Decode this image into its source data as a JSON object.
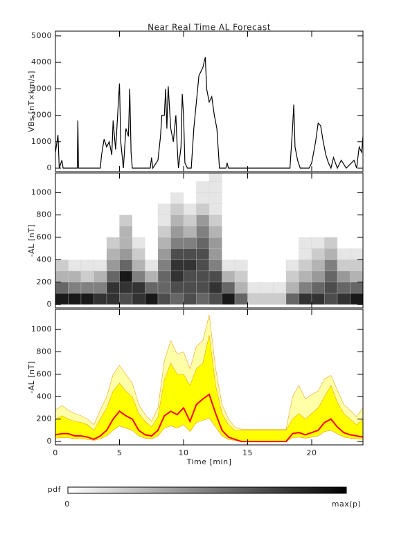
{
  "chart_data": [
    {
      "type": "line",
      "title": "Near Real Time AL Forecast",
      "ylabel": "VBs [nT×km/s]",
      "color": "#000000",
      "x": [
        0,
        0.2,
        0.3,
        0.5,
        0.6,
        1.3,
        1.7,
        1.75,
        1.8,
        3.5,
        3.6,
        3.8,
        4.0,
        4.2,
        4.4,
        4.5,
        4.7,
        4.9,
        5.0,
        5.1,
        5.3,
        5.5,
        5.7,
        5.8,
        5.9,
        6.0,
        7.4,
        7.5,
        7.6,
        8.0,
        8.2,
        8.3,
        8.5,
        8.6,
        8.7,
        8.8,
        9.0,
        9.2,
        9.4,
        9.5,
        9.6,
        9.8,
        9.9,
        10.0,
        10.1,
        10.3,
        10.6,
        10.8,
        11.0,
        11.2,
        11.5,
        11.7,
        11.8,
        12.0,
        12.2,
        12.4,
        12.6,
        12.8,
        13.3,
        13.4,
        13.5,
        18.3,
        18.5,
        18.6,
        18.7,
        18.9,
        19.1,
        19.8,
        20.0,
        20.3,
        20.5,
        20.7,
        20.9,
        21.1,
        21.3,
        21.5,
        21.7,
        22.0,
        22.3,
        22.7,
        23.3,
        23.5,
        23.7,
        23.9,
        24.0
      ],
      "values": [
        600,
        1250,
        0,
        300,
        0,
        0,
        0,
        1800,
        0,
        0,
        500,
        1100,
        800,
        1000,
        500,
        1800,
        700,
        2400,
        3200,
        1000,
        0,
        1500,
        1200,
        3000,
        600,
        0,
        0,
        400,
        0,
        300,
        1200,
        2000,
        2000,
        3000,
        1500,
        3100,
        1500,
        1000,
        2000,
        800,
        0,
        800,
        2800,
        2000,
        200,
        0,
        0,
        1500,
        2500,
        3500,
        3800,
        4200,
        3000,
        2500,
        2700,
        2000,
        1500,
        0,
        0,
        200,
        0,
        0,
        1500,
        2400,
        800,
        300,
        0,
        0,
        200,
        1000,
        1700,
        1600,
        1000,
        500,
        200,
        0,
        400,
        0,
        300,
        0,
        300,
        0,
        800,
        600,
        1200
      ],
      "xlim": [
        0,
        24
      ],
      "xticks": [
        0,
        5,
        10,
        15,
        20
      ],
      "ylim": [
        -130,
        5180
      ],
      "yticks": [
        0,
        1000,
        2000,
        3000,
        4000,
        5000
      ]
    },
    {
      "type": "heatmap",
      "ylabel": "-AL [nT]",
      "xbins": [
        0,
        1,
        2,
        3,
        4,
        5,
        6,
        7,
        8,
        9,
        10,
        11,
        12,
        13,
        14,
        15,
        16,
        17,
        18,
        19,
        20,
        21,
        22,
        23,
        24
      ],
      "ybins": [
        0,
        100,
        200,
        300,
        400,
        500,
        600,
        700,
        800,
        900,
        1000,
        1100,
        1200
      ],
      "values": [
        [
          0.9,
          0.6,
          0.3,
          0.2,
          0,
          0,
          0,
          0,
          0,
          0,
          0,
          0
        ],
        [
          0.9,
          0.5,
          0.3,
          0.1,
          0,
          0,
          0,
          0,
          0,
          0,
          0,
          0
        ],
        [
          0.9,
          0.5,
          0.2,
          0.1,
          0,
          0,
          0,
          0,
          0,
          0,
          0,
          0
        ],
        [
          0.8,
          0.5,
          0.3,
          0.1,
          0,
          0,
          0,
          0,
          0,
          0,
          0,
          0
        ],
        [
          0.8,
          0.8,
          0.6,
          0.4,
          0.3,
          0.2,
          0,
          0,
          0,
          0,
          0,
          0
        ],
        [
          0.7,
          0.8,
          0.9,
          0.6,
          0.4,
          0.3,
          0.3,
          0.2,
          0,
          0,
          0,
          0
        ],
        [
          0.8,
          0.8,
          0.5,
          0.3,
          0.2,
          0.1,
          0,
          0,
          0,
          0,
          0,
          0
        ],
        [
          0.9,
          0.6,
          0.3,
          0.1,
          0,
          0,
          0,
          0,
          0,
          0,
          0,
          0
        ],
        [
          0.7,
          0.6,
          0.6,
          0.5,
          0.4,
          0.3,
          0.2,
          0.1,
          0.1,
          0,
          0,
          0
        ],
        [
          0.6,
          0.7,
          0.8,
          0.8,
          0.7,
          0.5,
          0.4,
          0.3,
          0.2,
          0.1,
          0,
          0
        ],
        [
          0.7,
          0.7,
          0.7,
          0.8,
          0.7,
          0.5,
          0.3,
          0.2,
          0.1,
          0,
          0,
          0
        ],
        [
          0.6,
          0.7,
          0.7,
          0.7,
          0.7,
          0.6,
          0.5,
          0.4,
          0.2,
          0.1,
          0.1,
          0
        ],
        [
          0.7,
          0.8,
          0.7,
          0.5,
          0.4,
          0.4,
          0.3,
          0.2,
          0.1,
          0.1,
          0.1,
          0.1
        ],
        [
          0.9,
          0.6,
          0.3,
          0.1,
          0,
          0,
          0,
          0,
          0,
          0,
          0,
          0
        ],
        [
          0.6,
          0.3,
          0.2,
          0.1,
          0,
          0,
          0,
          0,
          0,
          0,
          0,
          0
        ],
        [
          0.2,
          0.1,
          0,
          0,
          0,
          0,
          0,
          0,
          0,
          0,
          0,
          0
        ],
        [
          0.2,
          0.1,
          0,
          0,
          0,
          0,
          0,
          0,
          0,
          0,
          0,
          0
        ],
        [
          0.2,
          0.1,
          0,
          0,
          0,
          0,
          0,
          0,
          0,
          0,
          0,
          0
        ],
        [
          0.6,
          0.3,
          0.2,
          0.1,
          0,
          0,
          0,
          0,
          0,
          0,
          0,
          0
        ],
        [
          0.8,
          0.5,
          0.3,
          0.2,
          0.1,
          0.1,
          0,
          0,
          0,
          0,
          0,
          0
        ],
        [
          0.8,
          0.6,
          0.4,
          0.3,
          0.2,
          0.1,
          0,
          0,
          0,
          0,
          0,
          0
        ],
        [
          0.7,
          0.7,
          0.6,
          0.5,
          0.3,
          0.2,
          0,
          0,
          0,
          0,
          0,
          0
        ],
        [
          0.8,
          0.6,
          0.4,
          0.2,
          0.1,
          0,
          0,
          0,
          0,
          0,
          0,
          0
        ],
        [
          0.9,
          0.6,
          0.3,
          0.2,
          0.1,
          0,
          0,
          0,
          0,
          0,
          0,
          0
        ]
      ],
      "xlim": [
        0,
        24
      ],
      "xticks": [
        0,
        5,
        10,
        15,
        20
      ],
      "ylim": [
        -30,
        1175
      ],
      "yticks": [
        0,
        200,
        400,
        600,
        800,
        1000
      ]
    },
    {
      "type": "band",
      "ylabel": "-AL [nT]",
      "xlabel": "Time [min]",
      "x": [
        0,
        0.5,
        1,
        1.5,
        2,
        2.5,
        3,
        3.5,
        4,
        4.5,
        5,
        5.5,
        6,
        6.5,
        7,
        7.5,
        8,
        8.5,
        9,
        9.5,
        10,
        10.5,
        11,
        11.5,
        12,
        12.5,
        13,
        13.5,
        14,
        14.5,
        15,
        15.5,
        16,
        16.5,
        17,
        17.5,
        18,
        18.5,
        19,
        19.5,
        20,
        20.5,
        21,
        21.5,
        22,
        22.5,
        23,
        23.5,
        24
      ],
      "median": [
        60,
        70,
        70,
        50,
        50,
        40,
        20,
        50,
        100,
        200,
        270,
        230,
        200,
        100,
        60,
        50,
        100,
        230,
        270,
        240,
        300,
        180,
        330,
        380,
        420,
        250,
        100,
        40,
        20,
        0,
        0,
        0,
        0,
        0,
        0,
        0,
        0,
        70,
        80,
        60,
        80,
        100,
        170,
        200,
        130,
        80,
        60,
        50,
        40
      ],
      "band_low": [
        30,
        35,
        35,
        25,
        25,
        20,
        10,
        25,
        50,
        100,
        140,
        120,
        100,
        50,
        30,
        25,
        50,
        120,
        140,
        120,
        150,
        90,
        170,
        190,
        210,
        130,
        50,
        20,
        10,
        0,
        0,
        0,
        0,
        0,
        0,
        0,
        0,
        35,
        40,
        30,
        40,
        50,
        90,
        100,
        70,
        40,
        30,
        25,
        20
      ],
      "band_high": [
        200,
        230,
        200,
        180,
        170,
        150,
        100,
        200,
        300,
        450,
        520,
        450,
        400,
        250,
        180,
        130,
        220,
        550,
        700,
        600,
        600,
        500,
        650,
        700,
        950,
        500,
        250,
        150,
        100,
        100,
        100,
        100,
        100,
        100,
        100,
        100,
        100,
        200,
        250,
        200,
        250,
        300,
        400,
        500,
        350,
        250,
        200,
        150,
        200
      ],
      "outer_high": [
        280,
        320,
        280,
        250,
        230,
        200,
        150,
        280,
        400,
        600,
        680,
        600,
        520,
        330,
        240,
        180,
        300,
        720,
        900,
        780,
        800,
        650,
        850,
        900,
        1130,
        650,
        330,
        200,
        130,
        110,
        110,
        110,
        110,
        110,
        110,
        110,
        110,
        400,
        500,
        380,
        420,
        450,
        560,
        590,
        460,
        330,
        280,
        220,
        300
      ],
      "median_color": "#ff0000",
      "band_color": "#ffff00",
      "outer_color": "#ffffa8",
      "edge_color": "#f0a020",
      "xlim": [
        0,
        24
      ],
      "xticks": [
        0,
        5,
        10,
        15,
        20
      ],
      "ylim": [
        -30,
        1180
      ],
      "yticks": [
        0,
        200,
        400,
        600,
        800,
        1000
      ]
    },
    {
      "type": "colorbar",
      "label": "pdf",
      "min_label": "0",
      "max_label": "max(p)"
    }
  ]
}
